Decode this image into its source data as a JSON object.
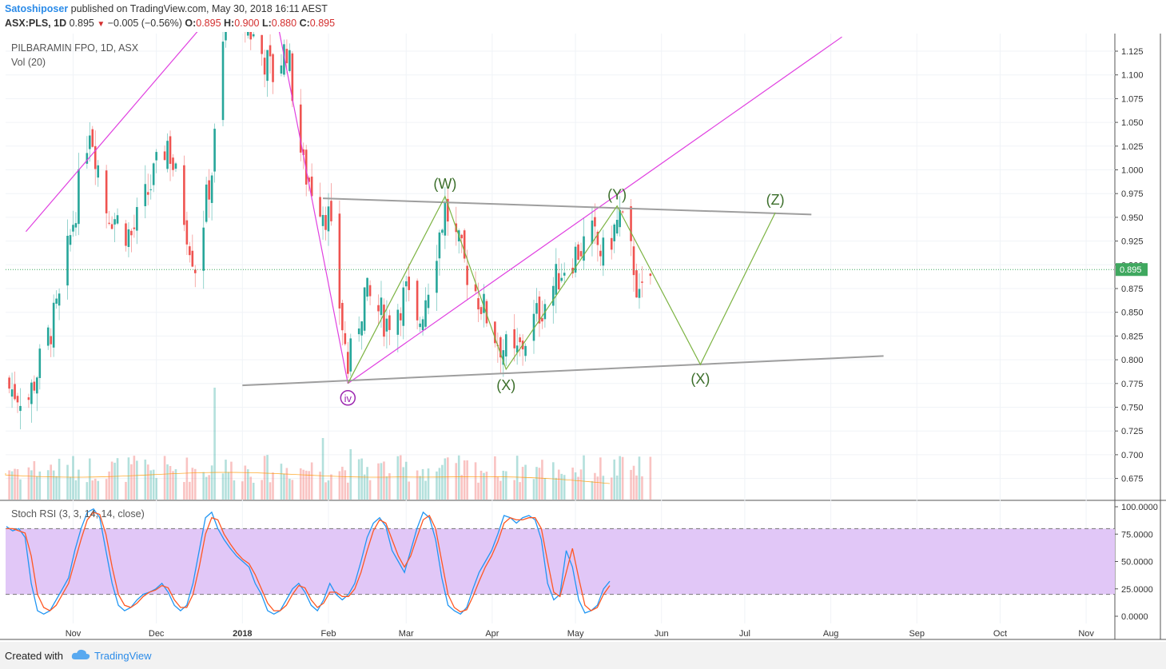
{
  "header": {
    "author": "Satoshiposer",
    "published": "published on TradingView.com, May 30, 2018 16:11 AEST",
    "symbol": "ASX:PLS, 1D",
    "last": "0.895",
    "change": "−0.005 (−0.56%)",
    "open_label": "O:",
    "open": "0.895",
    "high_label": "H:",
    "high": "0.900",
    "low_label": "L:",
    "low": "0.880",
    "close_label": "C:",
    "close": "0.895"
  },
  "legend": {
    "title": "PILBARAMIN FPO, 1D, ASX",
    "volume": "Vol (20)",
    "oscillator": "Stoch RSI (3, 3, 14, 14, close)"
  },
  "footer": {
    "created": "Created with",
    "brand": "TradingView"
  },
  "colors": {
    "up": "#26a69a",
    "down": "#ef5350",
    "trendline": "#e040e0",
    "wave": "#7cb342",
    "channel": "#9e9e9e",
    "price_tag": "#3fa85f",
    "stoch_k": "#2196f3",
    "stoch_d": "#ff5722",
    "stoch_band": "#e1c7f7",
    "label_wave": "#3b6e2a",
    "label_iv": "#9c27b0"
  },
  "chart_data": [
    {
      "type": "candlestick",
      "y_ticks": [
        "1.125",
        "1.100",
        "1.075",
        "1.050",
        "1.025",
        "1.000",
        "0.975",
        "0.950",
        "0.925",
        "0.900",
        "0.875",
        "0.850",
        "0.825",
        "0.800",
        "0.775",
        "0.750",
        "0.725",
        "0.700",
        "0.675"
      ],
      "ylim": [
        0.665,
        1.14
      ],
      "x_ticks": [
        "Nov",
        "Dec",
        "2018",
        "Feb",
        "Mar",
        "Apr",
        "May",
        "Jun",
        "Jul",
        "Aug",
        "Sep",
        "Oct",
        "Nov"
      ],
      "last_price": "0.895",
      "ohlc_sample": [
        {
          "date": "2017-10-16",
          "o": 0.79,
          "h": 0.8,
          "l": 0.74,
          "c": 0.76
        },
        {
          "date": "2017-10-23",
          "o": 0.77,
          "h": 0.86,
          "l": 0.76,
          "c": 0.85
        },
        {
          "date": "2017-11-06",
          "o": 0.9,
          "h": 1.1,
          "l": 0.88,
          "c": 1.07
        },
        {
          "date": "2017-11-20",
          "o": 0.98,
          "h": 1.0,
          "l": 0.9,
          "c": 0.93
        },
        {
          "date": "2017-12-04",
          "o": 0.95,
          "h": 1.06,
          "l": 0.94,
          "c": 1.04
        },
        {
          "date": "2017-12-15",
          "o": 0.94,
          "h": 0.96,
          "l": 0.88,
          "c": 0.9
        },
        {
          "date": "2017-12-22",
          "o": 1.0,
          "h": 1.22,
          "l": 0.99,
          "c": 1.2
        },
        {
          "date": "2018-01-12",
          "o": 1.12,
          "h": 1.13,
          "l": 1.08,
          "c": 1.09
        },
        {
          "date": "2018-01-19",
          "o": 1.05,
          "h": 1.06,
          "l": 0.94,
          "c": 0.96
        },
        {
          "date": "2018-02-08",
          "o": 0.83,
          "h": 0.84,
          "l": 0.775,
          "c": 0.79
        },
        {
          "date": "2018-03-15",
          "o": 0.92,
          "h": 0.975,
          "l": 0.91,
          "c": 0.96
        },
        {
          "date": "2018-04-06",
          "o": 0.83,
          "h": 0.84,
          "l": 0.785,
          "c": 0.8
        },
        {
          "date": "2018-05-16",
          "o": 0.93,
          "h": 0.96,
          "l": 0.92,
          "c": 0.955
        },
        {
          "date": "2018-05-24",
          "o": 0.88,
          "h": 0.89,
          "l": 0.855,
          "c": 0.86
        },
        {
          "date": "2018-05-29",
          "o": 0.895,
          "h": 0.9,
          "l": 0.88,
          "c": 0.895
        }
      ],
      "wave_labels": [
        "(W)",
        "(Y)",
        "(Z)",
        "(X)",
        "(X)",
        "iv"
      ],
      "wave_path": [
        {
          "date": "2018-02-08",
          "price": 0.775
        },
        {
          "date": "2018-03-15",
          "price": 0.972
        },
        {
          "date": "2018-04-06",
          "price": 0.79
        },
        {
          "date": "2018-05-16",
          "price": 0.962
        },
        {
          "date": "2018-06-15",
          "price": 0.795
        },
        {
          "date": "2018-07-12",
          "price": 0.955
        }
      ],
      "channel_upper": [
        {
          "date": "2018-01-30",
          "price": 0.97
        },
        {
          "date": "2018-07-25",
          "price": 0.953
        }
      ],
      "channel_lower": [
        {
          "date": "2018-01-01",
          "price": 0.773
        },
        {
          "date": "2018-08-20",
          "price": 0.804
        }
      ],
      "trend_left": [
        {
          "date": "2017-10-15",
          "price": 0.935
        },
        {
          "date": "2017-12-20",
          "price": 1.16
        }
      ],
      "trend_drop": [
        {
          "date": "2018-01-14",
          "price": 1.15
        },
        {
          "date": "2018-02-08",
          "price": 0.775
        }
      ],
      "trend_right": [
        {
          "date": "2018-02-08",
          "price": 0.775
        },
        {
          "date": "2018-08-05",
          "price": 1.14
        }
      ]
    },
    {
      "type": "line",
      "title": "Stoch RSI (3, 3, 14, 14, close)",
      "y_ticks": [
        "100.0000",
        "75.0000",
        "50.0000",
        "25.0000",
        "0.0000"
      ],
      "ylim": [
        -7,
        103
      ],
      "band": [
        20,
        80
      ],
      "series": [
        {
          "name": "K",
          "values": [
            82,
            78,
            80,
            72,
            30,
            5,
            2,
            5,
            15,
            25,
            35,
            60,
            80,
            95,
            98,
            90,
            60,
            30,
            10,
            5,
            8,
            15,
            20,
            22,
            25,
            30,
            22,
            10,
            5,
            10,
            30,
            60,
            90,
            95,
            80,
            70,
            62,
            55,
            50,
            45,
            30,
            20,
            5,
            2,
            5,
            15,
            25,
            30,
            22,
            10,
            5,
            15,
            30,
            20,
            15,
            20,
            30,
            50,
            72,
            85,
            90,
            82,
            60,
            50,
            40,
            60,
            80,
            95,
            90,
            70,
            35,
            10,
            5,
            2,
            8,
            25,
            40,
            50,
            60,
            75,
            92,
            90,
            85,
            90,
            92,
            88,
            70,
            30,
            15,
            20,
            60,
            45,
            15,
            3,
            5,
            10,
            25,
            32
          ]
        },
        {
          "name": "D",
          "values": [
            80,
            80,
            78,
            76,
            55,
            20,
            8,
            5,
            10,
            20,
            30,
            50,
            70,
            88,
            95,
            93,
            75,
            45,
            20,
            10,
            8,
            12,
            18,
            22,
            24,
            28,
            26,
            15,
            8,
            8,
            20,
            45,
            75,
            90,
            88,
            75,
            66,
            58,
            52,
            48,
            38,
            25,
            12,
            5,
            5,
            10,
            20,
            28,
            26,
            15,
            8,
            12,
            22,
            22,
            18,
            18,
            25,
            40,
            60,
            78,
            88,
            85,
            70,
            55,
            45,
            55,
            72,
            88,
            92,
            80,
            50,
            20,
            8,
            4,
            6,
            18,
            32,
            45,
            55,
            68,
            85,
            90,
            88,
            88,
            90,
            90,
            80,
            50,
            22,
            18,
            40,
            62,
            35,
            10,
            5,
            8,
            20,
            28
          ]
        }
      ]
    }
  ]
}
